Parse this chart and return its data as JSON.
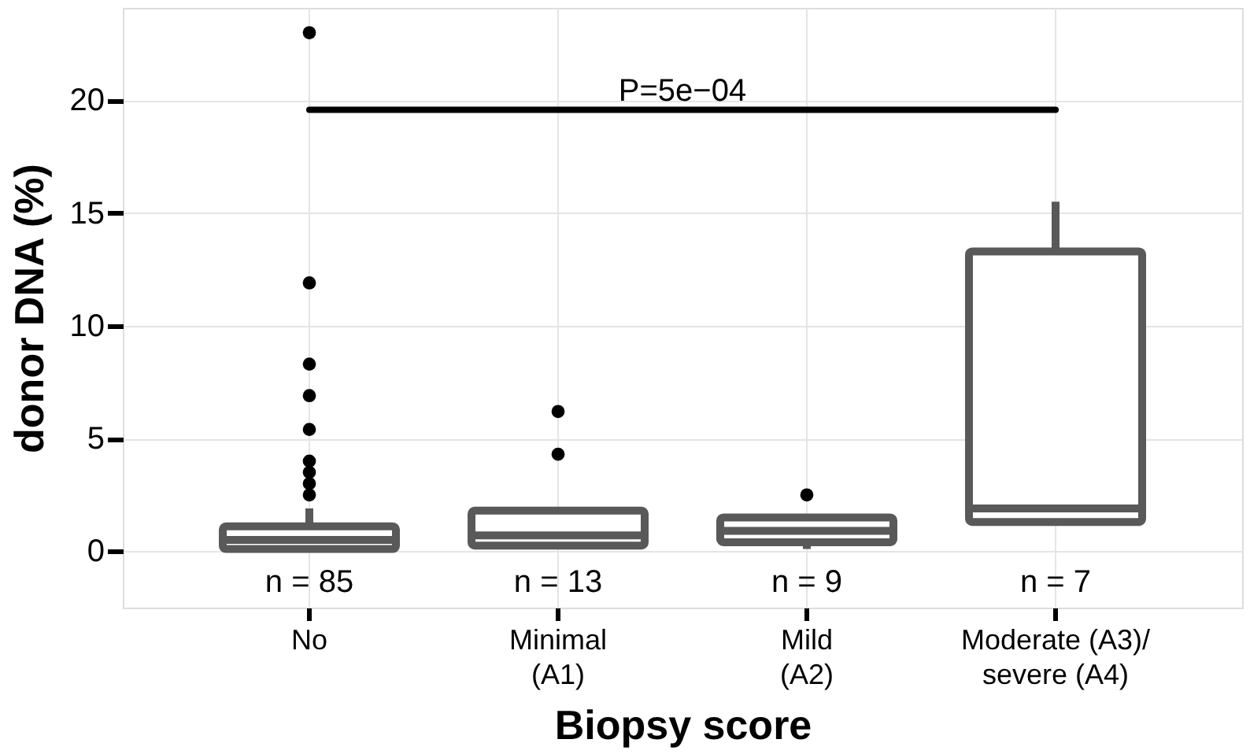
{
  "chart_data": {
    "type": "box",
    "xlabel": "Biopsy score",
    "ylabel": "donor DNA (%)",
    "categories": [
      "No",
      "Minimal\n(A1)",
      "Mild\n(A2)",
      "Moderate (A3)/\nsevere (A4)"
    ],
    "ylim": [
      -2.5,
      24.1
    ],
    "yticks": [
      0,
      5,
      10,
      15,
      20
    ],
    "grid": true,
    "series": [
      {
        "color": "#595959",
        "boxes": [
          {
            "low": 0,
            "q1": 0.1,
            "median": 0.5,
            "q3": 1.1,
            "high": 1.9
          },
          {
            "low": 0.1,
            "q1": 0.25,
            "median": 0.7,
            "q3": 1.8,
            "high": 1.8
          },
          {
            "low": 0.1,
            "q1": 0.4,
            "median": 0.9,
            "q3": 1.5,
            "high": 1.5
          },
          {
            "low": 1.3,
            "q1": 1.3,
            "median": 1.9,
            "q3": 13.3,
            "high": 15.5
          }
        ]
      },
      {
        "type": "scatter",
        "color": "#000000",
        "marker": "circle",
        "x": [
          "No",
          "No",
          "No",
          "No",
          "No",
          "No",
          "No",
          "No",
          "No",
          "Minimal\n(A1)",
          "Minimal\n(A1)",
          "Mild\n(A2)"
        ],
        "values": [
          23.0,
          11.9,
          8.3,
          6.9,
          5.4,
          4.0,
          3.5,
          3.0,
          2.5,
          6.2,
          4.3,
          2.5
        ]
      }
    ],
    "annotations": [
      "P=5e−04",
      "n = 85",
      "n = 13",
      "n = 9",
      "n = 7"
    ]
  }
}
